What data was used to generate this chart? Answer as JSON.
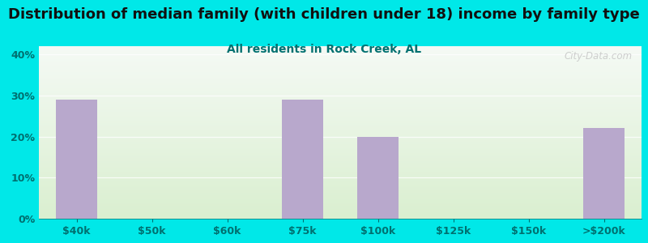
{
  "title": "Distribution of median family (with children under 18) income by family type",
  "subtitle": "All residents in Rock Creek, AL",
  "categories": [
    "$40k",
    "$50k",
    "$60k",
    "$75k",
    "$100k",
    "$125k",
    "$150k",
    ">$200k"
  ],
  "values": [
    29,
    0,
    0,
    29,
    20,
    0,
    0,
    22
  ],
  "bar_color": "#b8a8cc",
  "background_outer": "#00e8e8",
  "grad_top": "#f5faf5",
  "grad_bottom": "#daefd0",
  "title_color": "#111111",
  "subtitle_color": "#007070",
  "tick_color": "#007070",
  "yticks": [
    0,
    10,
    20,
    30,
    40
  ],
  "ylim": [
    0,
    42
  ],
  "title_fontsize": 13,
  "subtitle_fontsize": 10,
  "watermark": "City-Data.com",
  "bar_width": 0.55
}
